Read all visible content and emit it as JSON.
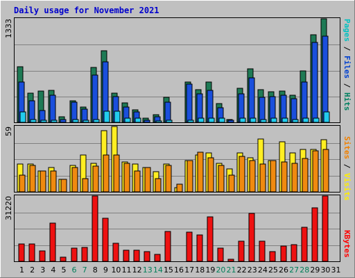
{
  "chart_data": {
    "type": "bar",
    "title": "Daily usage for November 2021",
    "categories": [
      "1",
      "2",
      "3",
      "4",
      "5",
      "6",
      "7",
      "8",
      "9",
      "10",
      "11",
      "12",
      "13",
      "14",
      "15",
      "16",
      "17",
      "18",
      "19",
      "20",
      "21",
      "22",
      "23",
      "24",
      "25",
      "26",
      "27",
      "28",
      "29",
      "30",
      "31"
    ],
    "weekend_days": [
      "6",
      "7",
      "13",
      "14",
      "20",
      "21",
      "27",
      "28"
    ],
    "grid": true,
    "panels": [
      {
        "id": "hits",
        "ymax_label": "1333",
        "ylim": [
          0,
          1333
        ],
        "side_labels": [
          {
            "text": "Pages",
            "color": "#00c0c0"
          },
          {
            "text": " / ",
            "color": "#000000"
          },
          {
            "text": "Files",
            "color": "#0040d0"
          },
          {
            "text": " / ",
            "color": "#000000"
          },
          {
            "text": "Hits",
            "color": "#008060"
          }
        ],
        "series": [
          {
            "name": "Hits",
            "color": "#1e7a55",
            "values": [
              720,
              380,
              400,
              410,
              70,
              280,
              200,
              710,
              920,
              380,
              250,
              160,
              50,
              100,
              320,
              0,
              520,
              420,
              520,
              240,
              40,
              440,
              690,
              420,
              390,
              400,
              350,
              660,
              1130,
              1333,
              0
            ]
          },
          {
            "name": "Files",
            "color": "#1a4fdc",
            "values": [
              520,
              280,
              150,
              350,
              35,
              260,
              170,
              610,
              780,
              330,
              200,
              130,
              30,
              70,
              260,
              0,
              490,
              370,
              410,
              190,
              25,
              370,
              570,
              320,
              330,
              350,
              300,
              520,
              1030,
              1110,
              0
            ]
          },
          {
            "name": "Pages",
            "color": "#22ccee",
            "values": [
              130,
              40,
              30,
              30,
              0,
              40,
              30,
              40,
              140,
              140,
              50,
              50,
              0,
              20,
              30,
              0,
              30,
              50,
              50,
              50,
              0,
              50,
              50,
              40,
              50,
              50,
              40,
              50,
              50,
              130,
              0
            ]
          }
        ]
      },
      {
        "id": "visits",
        "ymax_label": "59",
        "ylim": [
          0,
          59
        ],
        "side_labels": [
          {
            "text": "Sites",
            "color": "#f08000"
          },
          {
            "text": " / ",
            "color": "#000000"
          },
          {
            "text": "Visits",
            "color": "#ffee00"
          }
        ],
        "series": [
          {
            "name": "Visits",
            "color": "#ffee22",
            "values": [
              25,
              25,
              19,
              22,
              11,
              24,
              33,
              26,
              55,
              59,
              27,
              25,
              22,
              18,
              25,
              4,
              28,
              33,
              35,
              26,
              21,
              35,
              31,
              48,
              28,
              45,
              35,
              38,
              38,
              47,
              0
            ]
          },
          {
            "name": "Sites",
            "color": "#f08a10",
            "values": [
              15,
              24,
              19,
              19,
              11,
              22,
              12,
              23,
              33,
              33,
              26,
              19,
              22,
              12,
              24,
              7,
              28,
              36,
              31,
              24,
              15,
              32,
              28,
              25,
              28,
              27,
              26,
              30,
              37,
              38,
              0
            ]
          }
        ]
      },
      {
        "id": "kbytes",
        "ymax_label": "31220",
        "ylim": [
          0,
          31220
        ],
        "side_labels": [
          {
            "text": "KBytes",
            "color": "#ff0000"
          }
        ],
        "series": [
          {
            "name": "KBytes",
            "color": "#ee1111",
            "values": [
              8200,
              8200,
              5100,
              18200,
              2100,
              6200,
              6600,
              31220,
              20600,
              8600,
              5400,
              5400,
              4500,
              3400,
              14300,
              0,
              13800,
              12500,
              21200,
              6400,
              1000,
              9600,
              22800,
              9600,
              4700,
              7400,
              8000,
              16400,
              25600,
              31220,
              0
            ]
          }
        ]
      }
    ]
  }
}
